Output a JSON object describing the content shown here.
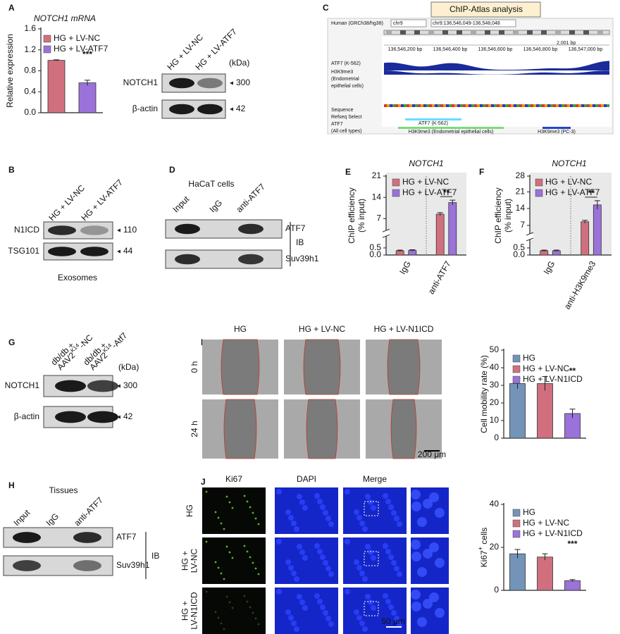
{
  "panel_labels": [
    "A",
    "B",
    "C",
    "D",
    "E",
    "F",
    "G",
    "H",
    "I",
    "J"
  ],
  "blot_A": {
    "lanes": [
      "HG + LV-NC",
      "HG + LV-ATF7"
    ],
    "unit": "(kDa)",
    "rows": [
      {
        "label": "NOTCH1",
        "kda": 300
      },
      {
        "label": "β-actin",
        "kda": 42
      }
    ]
  },
  "blot_B": {
    "lanes": [
      "HG + LV-NC",
      "HG + LV-ATF7"
    ],
    "rows": [
      {
        "label": "N1ICD",
        "kda": 110
      },
      {
        "label": "TSG101",
        "kda": 44
      }
    ],
    "caption": "Exosomes"
  },
  "chip_atlas": {
    "title": "ChIP-Atlas analysis",
    "genome": "Human (GRCh38/hg38)",
    "chromosome": "chr9",
    "locus": "chr9:136,546,049-136,548,048",
    "span": "2,001 bp",
    "positions": [
      "136,546,200 bp",
      "136,546,400 bp",
      "136,546,600 bp",
      "136,546,800 bp",
      "136,547,000 bp"
    ],
    "tracks": [
      [
        "ATF7 (K-562)"
      ],
      [
        "H3K9me3",
        "(Endometrial",
        "epithelial cells)"
      ]
    ],
    "lower_labels": [
      "Sequence",
      "Refseq Select",
      "ATF7",
      "(All cell types)"
    ],
    "features": [
      "ATF7 (K-562)",
      "H3K9me3 (Endometrial epithelial cells)",
      "H3K9me3 (PC-3)"
    ]
  },
  "blot_D": {
    "title": "HaCaT cells",
    "lanes": [
      "Input",
      "IgG",
      "anti-ATF7"
    ],
    "rows": [
      {
        "label": "ATF7"
      },
      {
        "label": "Suv39h1"
      }
    ],
    "method": "IB"
  },
  "blot_G": {
    "lanes": [
      {
        "text": "db/db +",
        "base": "AAV2",
        "sup": "K14",
        "suffix": "-NC"
      },
      {
        "text": "db/db +",
        "base": "AAV2",
        "sup": "K14",
        "suffix": "-Atf7"
      }
    ],
    "unit": "(kDa)",
    "rows": [
      {
        "label": "NOTCH1",
        "kda": 300
      },
      {
        "label": "β-actin",
        "kda": 42
      }
    ]
  },
  "blot_H": {
    "title": "Tissues",
    "lanes": [
      "Input",
      "IgG",
      "anti-ATF7"
    ],
    "rows": [
      {
        "label": "ATF7"
      },
      {
        "label": "Suv39h1"
      }
    ],
    "method": "IB"
  },
  "scratch_I": {
    "columns": [
      "HG",
      "HG + LV-NC",
      "HG + LV-N1ICD"
    ],
    "rows": [
      "0 h",
      "24 h"
    ],
    "scale_bar": "200 μm"
  },
  "stain_J": {
    "columns": [
      "Ki67",
      "DAPI",
      "Merge"
    ],
    "rows": [
      [
        "HG"
      ],
      [
        "HG +",
        "LV-NC"
      ],
      [
        "HG +",
        "LV-N1ICD"
      ]
    ],
    "scale_bar": "50 μm"
  },
  "chart_data": [
    {
      "type": "bar",
      "title": "NOTCH1 mRNA",
      "y_label": "Relative expression",
      "categories": [
        null
      ],
      "series": [
        {
          "name": "HG + LV-NC",
          "color": "#d0707f",
          "values": [
            1.0
          ],
          "errors": [
            0.01
          ]
        },
        {
          "name": "HG + LV-ATF7",
          "color": "#9b72d9",
          "values": [
            0.57
          ],
          "errors": [
            0.05
          ]
        }
      ],
      "ylim": [
        0,
        1.6
      ],
      "yticks": [
        {
          "value": 0,
          "label": "0.0"
        },
        0.4,
        0.8,
        1.2,
        1.6
      ],
      "significance": "***"
    },
    {
      "type": "bar",
      "title": "NOTCH1",
      "y_label": [
        "ChIP efficiency",
        "(% input)"
      ],
      "categories": [
        "IgG",
        "anti-ATF7"
      ],
      "series": [
        {
          "name": "HG + LV-NC",
          "color": "#d0707f",
          "values": [
            0.3,
            8.5
          ],
          "errors": [
            0.05,
            0.5
          ]
        },
        {
          "name": "HG + LV-ATF7",
          "color": "#9b72d9",
          "values": [
            0.32,
            12.3
          ],
          "errors": [
            0.05,
            0.8
          ]
        }
      ],
      "ylim": [
        0,
        21
      ],
      "yticks": [
        {
          "value": 0,
          "label": "0.0"
        },
        0.5,
        7,
        14,
        21
      ],
      "axis_break": true,
      "significance": "**"
    },
    {
      "type": "bar",
      "title": "NOTCH1",
      "y_label": [
        "ChIP efficiency",
        "(% input)"
      ],
      "categories": [
        "IgG",
        "anti-H3K9me3"
      ],
      "series": [
        {
          "name": "HG + LV-NC",
          "color": "#d0707f",
          "values": [
            0.3,
            8.5
          ],
          "errors": [
            0.05,
            0.6
          ]
        },
        {
          "name": "HG + LV-ATF7",
          "color": "#9b72d9",
          "values": [
            0.3,
            15.5
          ],
          "errors": [
            0.05,
            1.8
          ]
        }
      ],
      "ylim": [
        0,
        28
      ],
      "yticks": [
        {
          "value": 0,
          "label": "0.0"
        },
        0.5,
        7,
        14,
        21,
        28
      ],
      "axis_break": true,
      "significance": "**"
    },
    {
      "type": "bar",
      "y_label": "Cell mobility rate (%)",
      "categories": [
        null
      ],
      "series": [
        {
          "name": "HG",
          "color": "#7394b8",
          "values": [
            31
          ],
          "errors": [
            3
          ]
        },
        {
          "name": "HG + LV-NC",
          "color": "#d0707f",
          "values": [
            31
          ],
          "errors": [
            4
          ]
        },
        {
          "name": "HG + LV-N1ICD",
          "color": "#9b72d9",
          "values": [
            14
          ],
          "errors": [
            2.5
          ]
        }
      ],
      "ylim": [
        0,
        50
      ],
      "yticks": [
        0,
        10,
        20,
        30,
        40,
        50
      ],
      "significance": "**"
    },
    {
      "type": "bar",
      "y_label": "Ki67",
      "y_label_sup": "+",
      "y_label_suffix": " cells",
      "categories": [
        null
      ],
      "series": [
        {
          "name": "HG",
          "color": "#7394b8",
          "values": [
            17
          ],
          "errors": [
            2
          ]
        },
        {
          "name": "HG + LV-NC",
          "color": "#d0707f",
          "values": [
            15.5
          ],
          "errors": [
            1.5
          ]
        },
        {
          "name": "HG + LV-N1ICD",
          "color": "#9b72d9",
          "values": [
            4.5
          ],
          "errors": [
            0.5
          ]
        }
      ],
      "ylim": [
        0,
        40
      ],
      "yticks": [
        0,
        20,
        40
      ],
      "significance": "***"
    }
  ]
}
